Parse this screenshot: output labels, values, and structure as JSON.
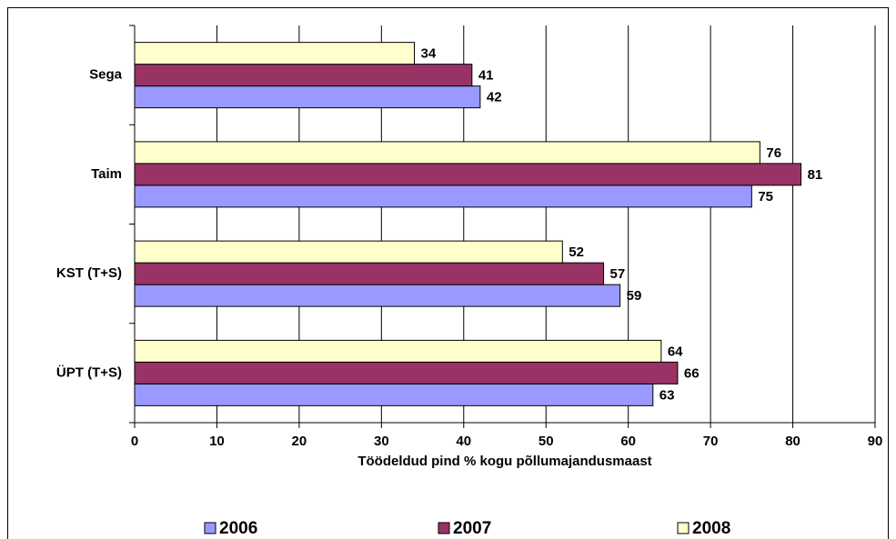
{
  "chart_data": {
    "type": "bar",
    "orientation": "horizontal",
    "x_label": "Töödeldud pind % kogu põllumajandusmaast",
    "categories": [
      "Sega",
      "Taim",
      "KST (T+S)",
      "ÜPT (T+S)"
    ],
    "series": [
      {
        "name": "2006",
        "color": "#9999ff",
        "values": [
          42,
          75,
          59,
          63
        ]
      },
      {
        "name": "2007",
        "color": "#993366",
        "values": [
          41,
          81,
          57,
          66
        ]
      },
      {
        "name": "2008",
        "color": "#ffffcc",
        "values": [
          34,
          76,
          52,
          64
        ]
      }
    ],
    "xlim": [
      0,
      90
    ],
    "xticks": [
      0,
      10,
      20,
      30,
      40,
      50,
      60,
      70,
      80,
      90
    ],
    "grid": true,
    "legend": "bottom"
  }
}
